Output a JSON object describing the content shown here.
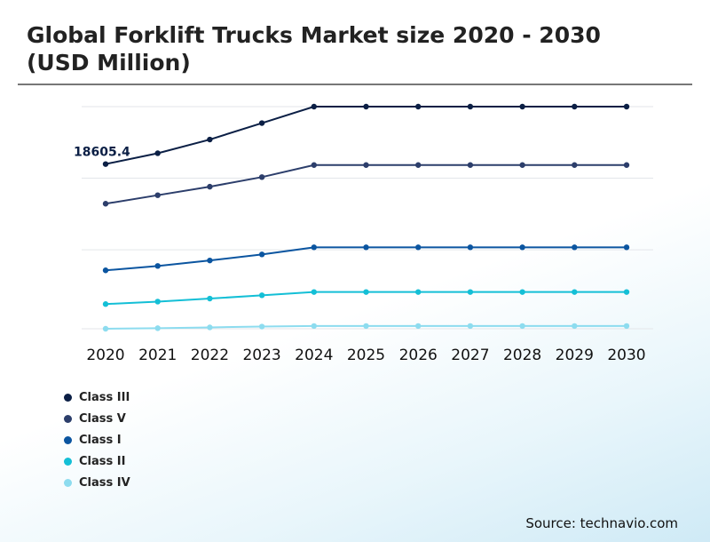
{
  "title": "Global Forklift Trucks Market size 2020 - 2030 (USD Million)",
  "source": "Source: technavio.com",
  "legend": [
    {
      "label": "Class III",
      "color": "#0b1f45"
    },
    {
      "label": "Class V",
      "color": "#2c3e6b"
    },
    {
      "label": "Class I",
      "color": "#0b55a0"
    },
    {
      "label": "Class II",
      "color": "#14bfd6"
    },
    {
      "label": "Class IV",
      "color": "#8ddcef"
    }
  ],
  "chart_data": {
    "type": "line",
    "categories": [
      "2020",
      "2021",
      "2022",
      "2023",
      "2024",
      "2025",
      "2026",
      "2027",
      "2028",
      "2029",
      "2030"
    ],
    "series": [
      {
        "name": "Class III",
        "color": "#0b1f45",
        "values": [
          18605.4,
          19000,
          19500,
          20100,
          20700,
          20700,
          20700,
          20700,
          20700,
          20700,
          20700
        ]
      },
      {
        "name": "Class V",
        "color": "#2c3e6b",
        "values": [
          17160,
          17470,
          17780,
          18130,
          18570,
          18570,
          18570,
          18570,
          18570,
          18570,
          18570
        ]
      },
      {
        "name": "Class I",
        "color": "#0b55a0",
        "values": [
          14730,
          14890,
          15090,
          15310,
          15570,
          15570,
          15570,
          15570,
          15570,
          15570,
          15570
        ]
      },
      {
        "name": "Class II",
        "color": "#14bfd6",
        "values": [
          13500,
          13590,
          13700,
          13820,
          13940,
          13940,
          13940,
          13940,
          13940,
          13940,
          13940
        ]
      },
      {
        "name": "Class IV",
        "color": "#8ddcef",
        "values": [
          12600,
          12620,
          12650,
          12680,
          12700,
          12700,
          12700,
          12700,
          12700,
          12700,
          12700
        ]
      }
    ],
    "data_labels": [
      {
        "series": "Class III",
        "category": "2020",
        "text": "18605.4"
      }
    ],
    "ylim": [
      12600,
      20700
    ],
    "gridlines": [
      20700,
      18090,
      15480,
      12600
    ],
    "grid": true,
    "legend_position": "bottom-left"
  }
}
